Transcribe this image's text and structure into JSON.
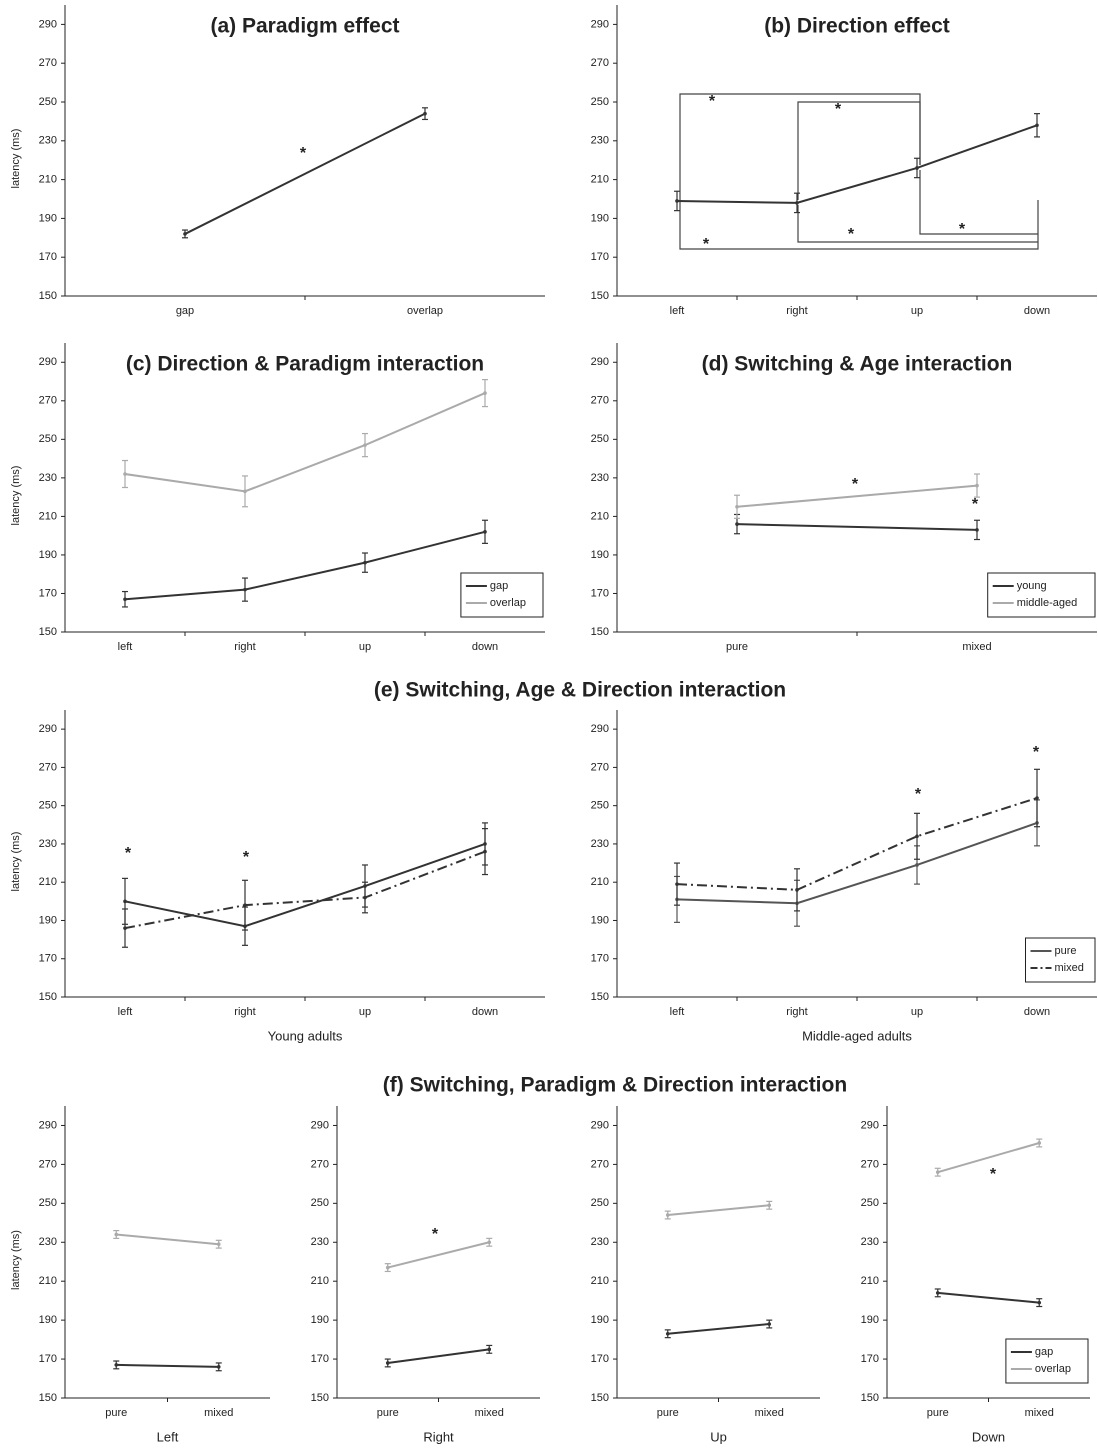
{
  "group_titles": [
    "(e) Switching, Age & Direction interaction",
    "(f) Switching, Paradigm & Direction interaction"
  ],
  "chart_data": [
    {
      "type": "line",
      "title": "(a) Paradigm effect",
      "y_label": "latency (ms)",
      "categories": [
        "gap",
        "overlap"
      ],
      "color": "#333333",
      "values": [
        182,
        244
      ],
      "errors": [
        2,
        3
      ],
      "ylim": [
        150,
        300
      ],
      "yticks": [
        150,
        170,
        190,
        210,
        230,
        250,
        270,
        290
      ],
      "annotations": [
        "*"
      ]
    },
    {
      "type": "line",
      "title": "(b) Direction effect",
      "categories": [
        "left",
        "right",
        "up",
        "down"
      ],
      "color": "#333333",
      "values": [
        199,
        198,
        216,
        238
      ],
      "errors": [
        5,
        5,
        5,
        6
      ],
      "ylim": [
        150,
        300
      ],
      "yticks": [
        150,
        170,
        190,
        210,
        230,
        250,
        270,
        290
      ],
      "annotations": [
        "*",
        "*",
        "*",
        "*",
        "*"
      ]
    },
    {
      "type": "line",
      "title": "(c) Direction & Paradigm interaction",
      "y_label": "latency (ms)",
      "categories": [
        "left",
        "right",
        "up",
        "down"
      ],
      "series": [
        {
          "name": "gap",
          "color": "#333333",
          "style": "solid",
          "values": [
            167,
            172,
            186,
            202
          ],
          "errors": [
            4,
            6,
            5,
            6
          ]
        },
        {
          "name": "overlap",
          "color": "#aaaaaa",
          "style": "solid",
          "values": [
            232,
            223,
            247,
            274
          ],
          "errors": [
            7,
            8,
            6,
            7
          ]
        }
      ],
      "ylim": [
        150,
        300
      ],
      "yticks": [
        150,
        170,
        190,
        210,
        230,
        250,
        270,
        290
      ],
      "legend": "lower right"
    },
    {
      "type": "line",
      "title": "(d) Switching & Age interaction",
      "categories": [
        "pure",
        "mixed"
      ],
      "series": [
        {
          "name": "young",
          "color": "#333333",
          "style": "solid",
          "values": [
            206,
            203
          ],
          "errors": [
            5,
            5
          ]
        },
        {
          "name": "middle-aged",
          "color": "#aaaaaa",
          "style": "solid",
          "values": [
            215,
            226
          ],
          "errors": [
            6,
            6
          ]
        }
      ],
      "ylim": [
        150,
        300
      ],
      "yticks": [
        150,
        170,
        190,
        210,
        230,
        250,
        270,
        290
      ],
      "legend": "lower right",
      "annotations": [
        "*",
        "*"
      ]
    },
    {
      "type": "line",
      "x_label": "Young adults",
      "y_label": "latency (ms)",
      "categories": [
        "left",
        "right",
        "up",
        "down"
      ],
      "series": [
        {
          "name": "pure",
          "color": "#333333",
          "style": "solid",
          "values": [
            200,
            187,
            208,
            230
          ],
          "errors": [
            12,
            10,
            11,
            11
          ]
        },
        {
          "name": "mixed",
          "color": "#333333",
          "style": "dashdot",
          "values": [
            186,
            198,
            202,
            226
          ],
          "errors": [
            10,
            13,
            8,
            12
          ]
        }
      ],
      "ylim": [
        150,
        300
      ],
      "yticks": [
        150,
        170,
        190,
        210,
        230,
        250,
        270,
        290
      ],
      "annotations": [
        "*",
        "*"
      ]
    },
    {
      "type": "line",
      "x_label": "Middle-aged adults",
      "categories": [
        "left",
        "right",
        "up",
        "down"
      ],
      "series": [
        {
          "name": "pure",
          "color": "#555555",
          "style": "solid",
          "values": [
            201,
            199,
            219,
            241
          ],
          "errors": [
            12,
            12,
            10,
            12
          ]
        },
        {
          "name": "mixed",
          "color": "#333333",
          "style": "dashdot",
          "values": [
            209,
            206,
            234,
            254
          ],
          "errors": [
            11,
            11,
            12,
            15
          ]
        }
      ],
      "ylim": [
        150,
        300
      ],
      "yticks": [
        150,
        170,
        190,
        210,
        230,
        250,
        270,
        290
      ],
      "legend": "lower right",
      "annotations": [
        "*",
        "*"
      ]
    },
    {
      "type": "line",
      "x_label": "Left",
      "y_label": "latency (ms)",
      "categories": [
        "pure",
        "mixed"
      ],
      "series": [
        {
          "name": "gap",
          "color": "#333333",
          "style": "solid",
          "values": [
            167,
            166
          ],
          "errors": [
            2,
            2
          ]
        },
        {
          "name": "overlap",
          "color": "#aaaaaa",
          "style": "solid",
          "values": [
            234,
            229
          ],
          "errors": [
            2,
            2
          ]
        }
      ],
      "ylim": [
        150,
        300
      ],
      "yticks": [
        150,
        170,
        190,
        210,
        230,
        250,
        270,
        290
      ]
    },
    {
      "type": "line",
      "x_label": "Right",
      "categories": [
        "pure",
        "mixed"
      ],
      "series": [
        {
          "name": "gap",
          "color": "#333333",
          "style": "solid",
          "values": [
            168,
            175
          ],
          "errors": [
            2,
            2
          ]
        },
        {
          "name": "overlap",
          "color": "#aaaaaa",
          "style": "solid",
          "values": [
            217,
            230
          ],
          "errors": [
            2,
            2
          ]
        }
      ],
      "ylim": [
        150,
        300
      ],
      "yticks": [
        150,
        170,
        190,
        210,
        230,
        250,
        270,
        290
      ],
      "annotations": [
        "*"
      ]
    },
    {
      "type": "line",
      "x_label": "Up",
      "categories": [
        "pure",
        "mixed"
      ],
      "series": [
        {
          "name": "gap",
          "color": "#333333",
          "style": "solid",
          "values": [
            183,
            188
          ],
          "errors": [
            2,
            2
          ]
        },
        {
          "name": "overlap",
          "color": "#aaaaaa",
          "style": "solid",
          "values": [
            244,
            249
          ],
          "errors": [
            2,
            2
          ]
        }
      ],
      "ylim": [
        150,
        300
      ],
      "yticks": [
        150,
        170,
        190,
        210,
        230,
        250,
        270,
        290
      ]
    },
    {
      "type": "line",
      "x_label": "Down",
      "categories": [
        "pure",
        "mixed"
      ],
      "series": [
        {
          "name": "gap",
          "color": "#333333",
          "style": "solid",
          "values": [
            204,
            199
          ],
          "errors": [
            2,
            2
          ]
        },
        {
          "name": "overlap",
          "color": "#aaaaaa",
          "style": "solid",
          "values": [
            266,
            281
          ],
          "errors": [
            2,
            2
          ]
        }
      ],
      "ylim": [
        150,
        300
      ],
      "yticks": [
        150,
        170,
        190,
        210,
        230,
        250,
        270,
        290
      ],
      "legend": "lower right",
      "annotations": [
        "*"
      ]
    }
  ]
}
